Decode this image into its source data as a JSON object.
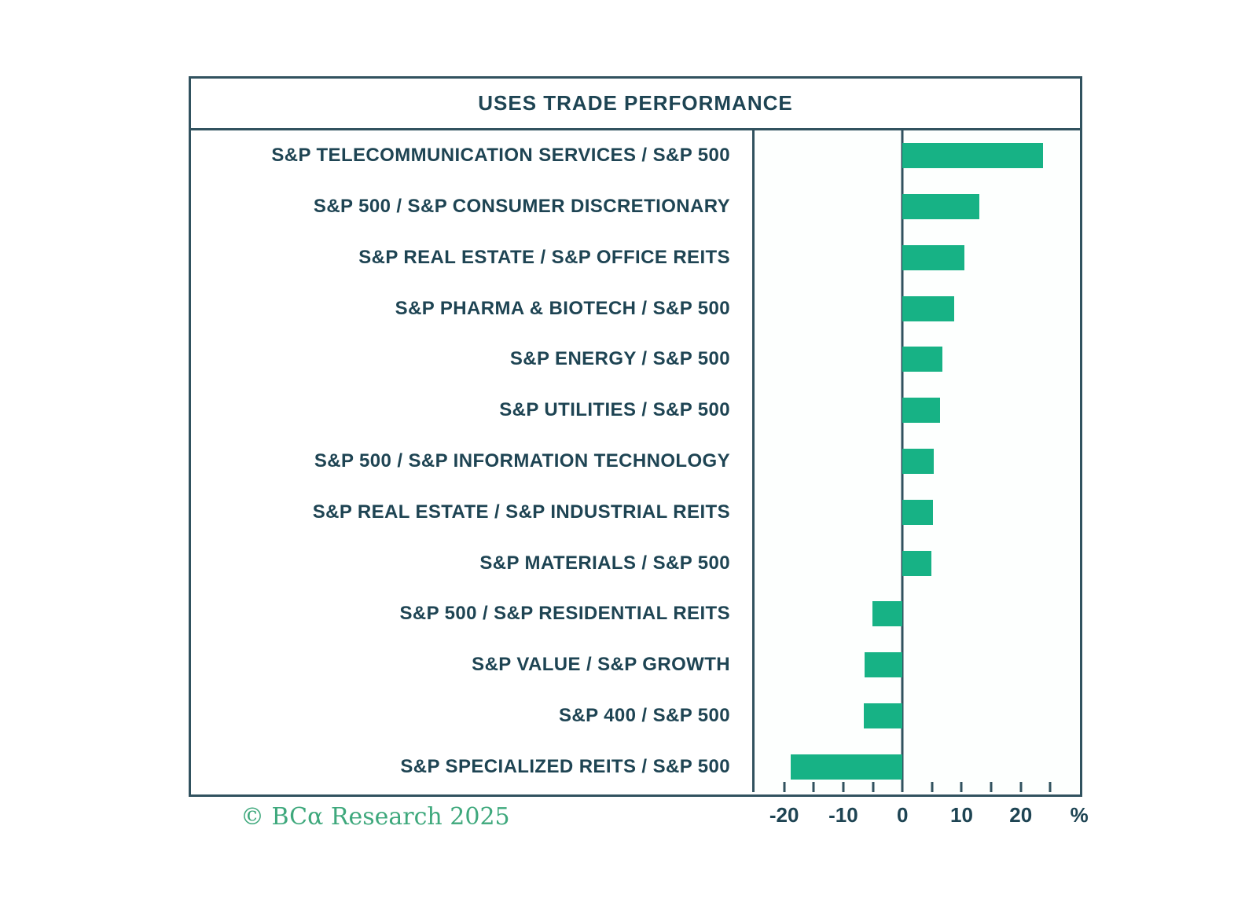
{
  "title": "USES TRADE PERFORMANCE",
  "footer": "© BCα Research 2025",
  "chart_data": {
    "type": "bar",
    "orientation": "horizontal",
    "title": "USES TRADE PERFORMANCE",
    "categories": [
      "S&P TELECOMMUNICATION SERVICES / S&P 500",
      "S&P 500 / S&P CONSUMER DISCRETIONARY",
      "S&P REAL ESTATE / S&P OFFICE REITS",
      "S&P PHARMA & BIOTECH / S&P 500",
      "S&P ENERGY / S&P 500",
      "S&P UTILITIES / S&P 500",
      "S&P 500 / S&P INFORMATION TECHNOLOGY",
      "S&P REAL ESTATE / S&P INDUSTRIAL REITS",
      "S&P MATERIALS / S&P 500",
      "S&P 500 / S&P RESIDENTIAL REITS",
      "S&P VALUE / S&P GROWTH",
      "S&P 400 / S&P 500",
      "S&P SPECIALIZED REITS / S&P 500"
    ],
    "values": [
      23.7,
      13.0,
      10.5,
      8.8,
      6.7,
      6.3,
      5.3,
      5.2,
      4.9,
      -5.1,
      -6.4,
      -6.6,
      -18.9
    ],
    "unit": "%",
    "xlim": [
      -25,
      30
    ],
    "xticks": [
      -20,
      -10,
      0,
      10,
      20
    ],
    "minor_tick_step": 5,
    "grid": false,
    "legend": "none",
    "bar_color": "#17b285",
    "text_color": "#1e4453",
    "border_color": "#31525f",
    "footer_color": "#3ea87c"
  }
}
